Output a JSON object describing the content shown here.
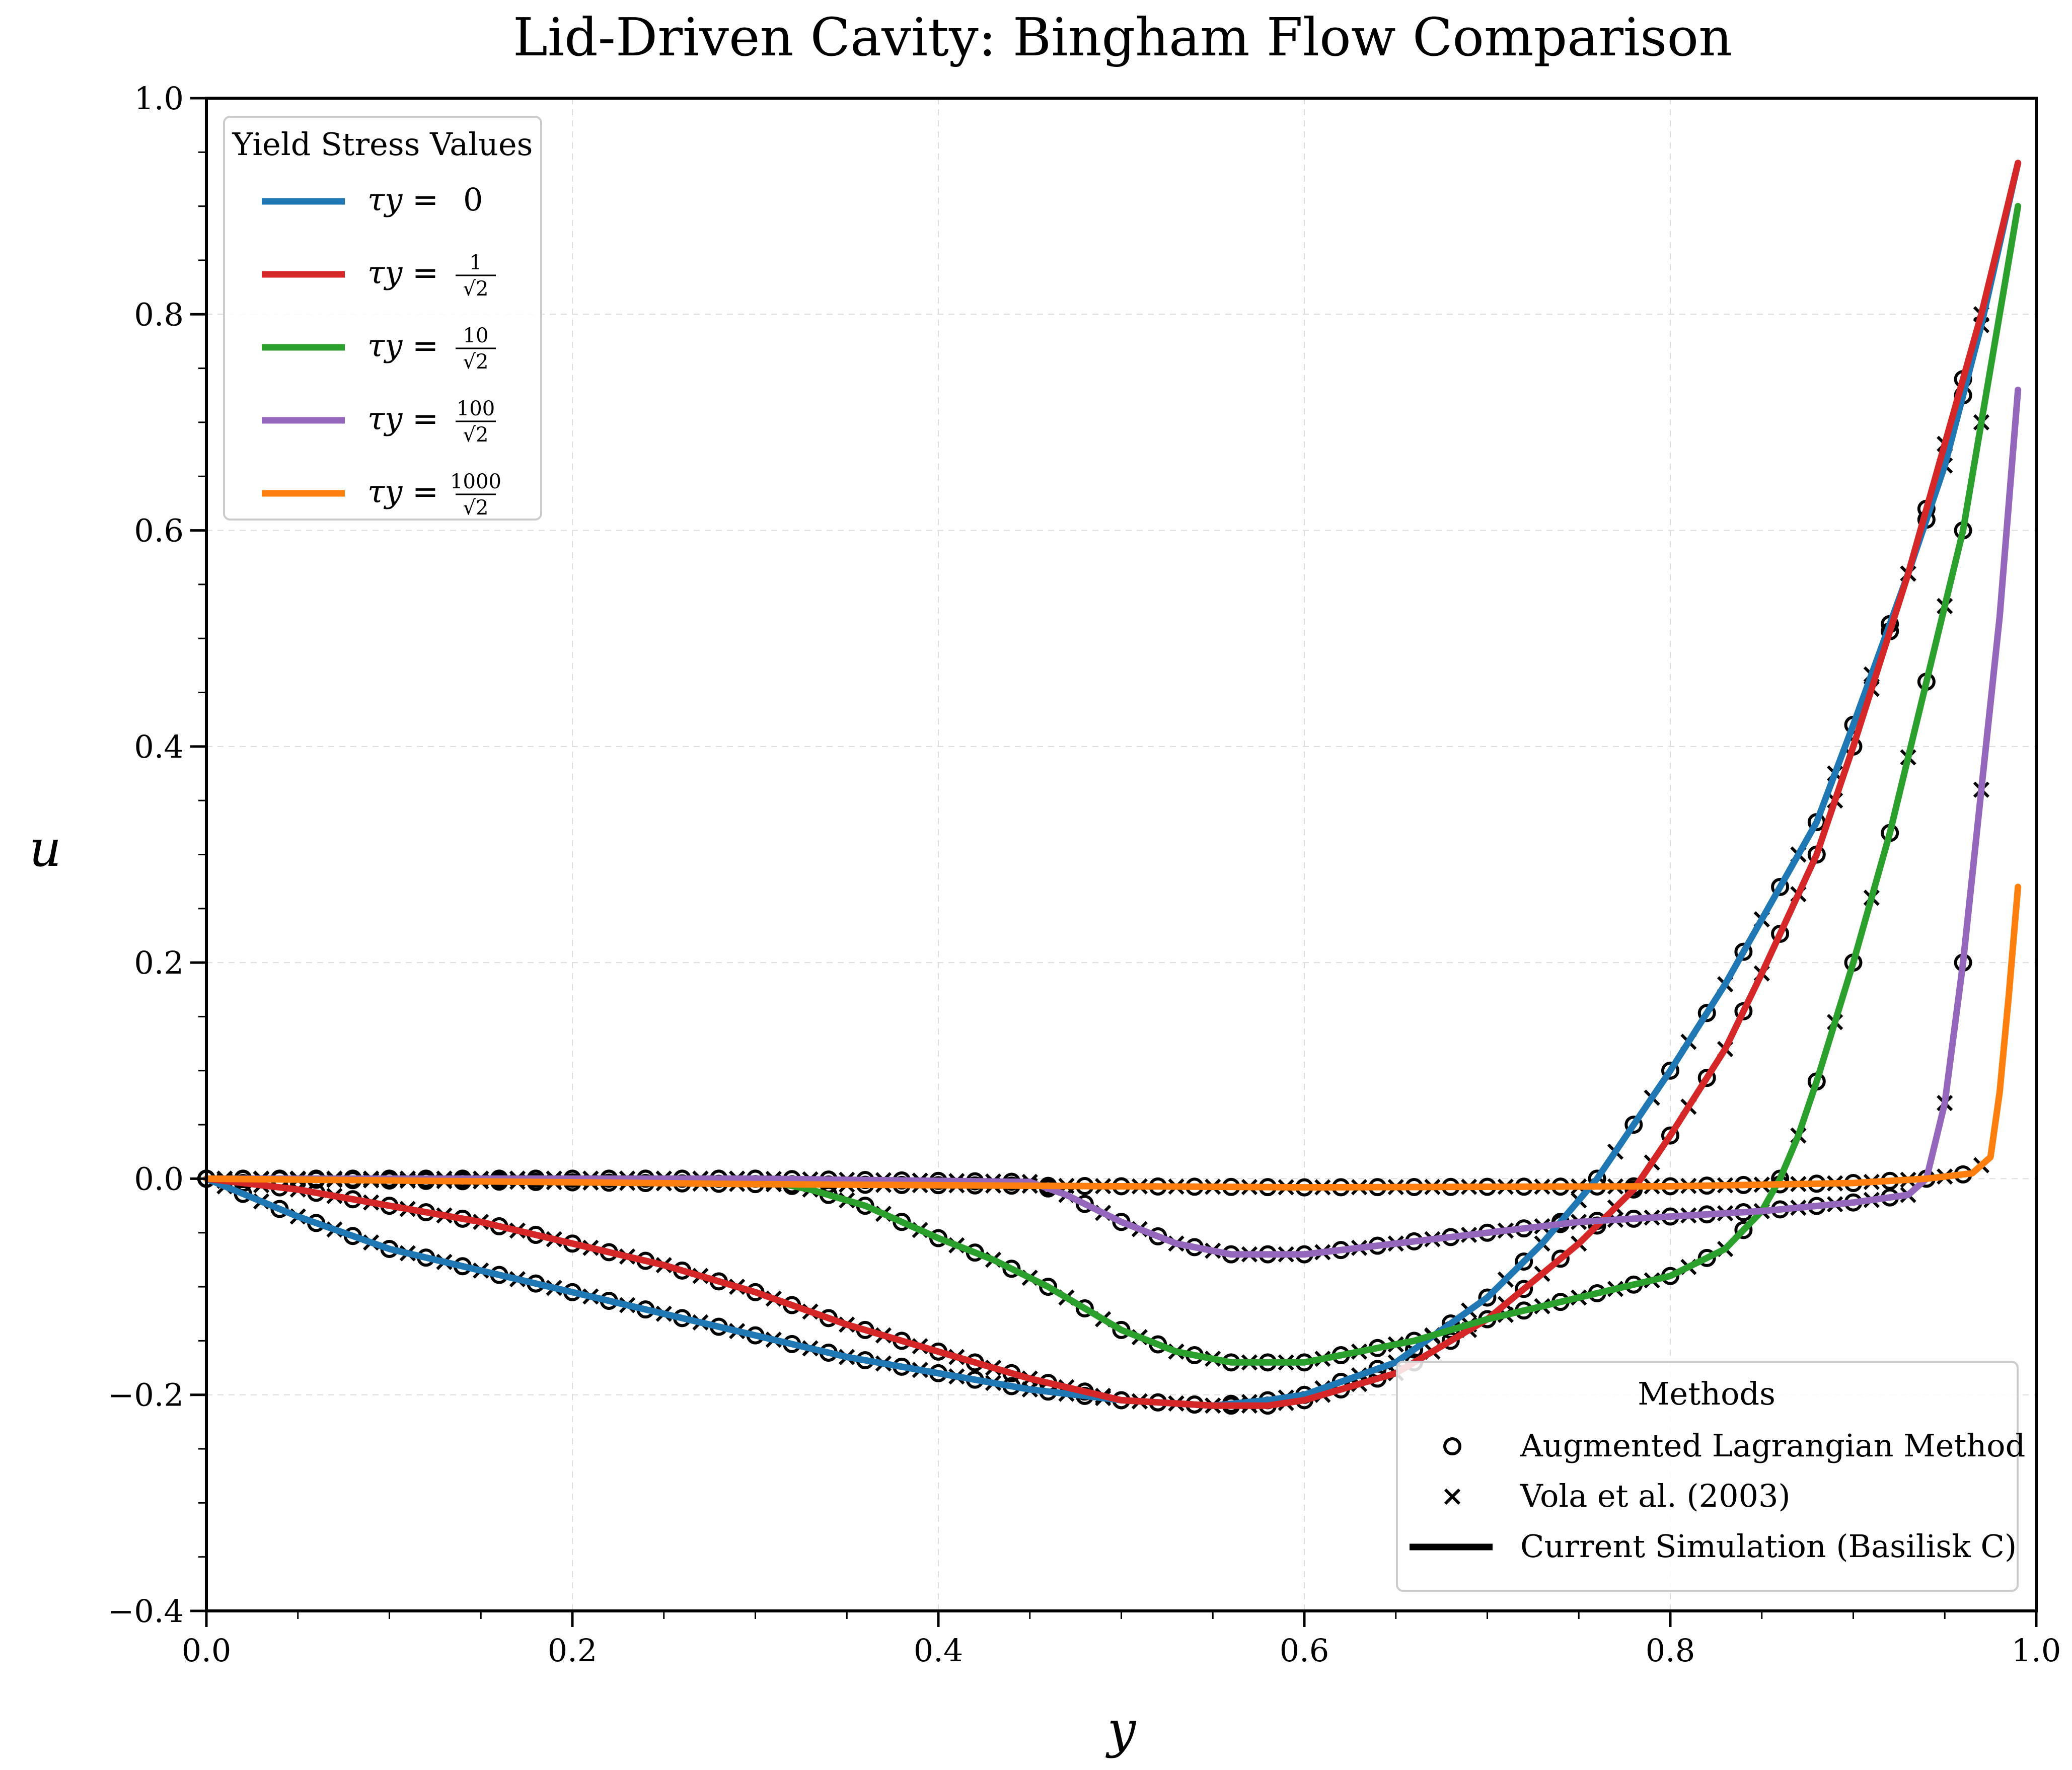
{
  "chart_data": {
    "type": "line",
    "title": "Lid-Driven Cavity: Bingham Flow Comparison",
    "xlabel": "y",
    "ylabel": "u",
    "xlim": [
      0.0,
      1.0
    ],
    "ylim": [
      -0.4,
      1.0
    ],
    "xticks": [
      "0.0",
      "0.2",
      "0.4",
      "0.6",
      "0.8",
      "1.0"
    ],
    "yticks": [
      "−0.4",
      "−0.2",
      "0.0",
      "0.2",
      "0.4",
      "0.6",
      "0.8",
      "1.0"
    ],
    "grid": true,
    "legend_series": {
      "title": "Yield Stress Values",
      "placement": "top-left",
      "entries": [
        {
          "prefix": "τy =",
          "value": "0",
          "color": "#1f77b4"
        },
        {
          "prefix": "τy =",
          "num": "1",
          "den": "√2",
          "color": "#d62728"
        },
        {
          "prefix": "τy =",
          "num": "10",
          "den": "√2",
          "color": "#2ca02c"
        },
        {
          "prefix": "τy =",
          "num": "100",
          "den": "√2",
          "color": "#9467bd"
        },
        {
          "prefix": "τy =",
          "num": "1000",
          "den": "√2",
          "color": "#ff7f0e"
        }
      ]
    },
    "legend_methods": {
      "title": "Methods",
      "placement": "bottom-right",
      "entries": [
        {
          "label": "Augmented Lagrangian Method",
          "marker": "circle"
        },
        {
          "label": "Vola et al. (2003)",
          "marker": "cross"
        },
        {
          "label": "Current Simulation (Basilisk C)",
          "marker": "line"
        }
      ]
    },
    "series": [
      {
        "color": "#1f77b4",
        "x": [
          0.0,
          0.05,
          0.1,
          0.15,
          0.2,
          0.25,
          0.3,
          0.35,
          0.4,
          0.45,
          0.5,
          0.55,
          0.58,
          0.6,
          0.65,
          0.7,
          0.73,
          0.76,
          0.78,
          0.8,
          0.83,
          0.85,
          0.88,
          0.9,
          0.93,
          0.95,
          0.97,
          0.99
        ],
        "y": [
          0.0,
          -0.035,
          -0.065,
          -0.085,
          -0.105,
          -0.125,
          -0.145,
          -0.165,
          -0.18,
          -0.195,
          -0.205,
          -0.21,
          -0.205,
          -0.2,
          -0.17,
          -0.11,
          -0.06,
          0.0,
          0.05,
          0.1,
          0.18,
          0.24,
          0.33,
          0.42,
          0.56,
          0.66,
          0.79,
          0.94
        ]
      },
      {
        "color": "#d62728",
        "x": [
          0.0,
          0.05,
          0.1,
          0.15,
          0.2,
          0.25,
          0.3,
          0.35,
          0.4,
          0.45,
          0.5,
          0.55,
          0.58,
          0.6,
          0.65,
          0.7,
          0.75,
          0.78,
          0.8,
          0.83,
          0.85,
          0.88,
          0.9,
          0.93,
          0.95,
          0.97,
          0.99
        ],
        "y": [
          0.0,
          -0.01,
          -0.025,
          -0.04,
          -0.06,
          -0.08,
          -0.105,
          -0.135,
          -0.16,
          -0.185,
          -0.205,
          -0.21,
          -0.21,
          -0.205,
          -0.18,
          -0.13,
          -0.06,
          -0.01,
          0.04,
          0.12,
          0.19,
          0.3,
          0.4,
          0.56,
          0.68,
          0.8,
          0.94
        ]
      },
      {
        "color": "#2ca02c",
        "x": [
          0.0,
          0.2,
          0.3,
          0.33,
          0.36,
          0.4,
          0.43,
          0.46,
          0.5,
          0.53,
          0.56,
          0.6,
          0.63,
          0.66,
          0.7,
          0.75,
          0.8,
          0.83,
          0.85,
          0.86,
          0.87,
          0.88,
          0.9,
          0.92,
          0.94,
          0.96,
          0.975,
          0.99
        ],
        "y": [
          0.0,
          0.0,
          0.0,
          -0.01,
          -0.025,
          -0.055,
          -0.075,
          -0.1,
          -0.14,
          -0.16,
          -0.17,
          -0.17,
          -0.16,
          -0.15,
          -0.13,
          -0.11,
          -0.09,
          -0.065,
          -0.03,
          0.0,
          0.04,
          0.09,
          0.2,
          0.32,
          0.46,
          0.6,
          0.75,
          0.9
        ]
      },
      {
        "color": "#9467bd",
        "x": [
          0.0,
          0.3,
          0.45,
          0.47,
          0.5,
          0.53,
          0.56,
          0.6,
          0.65,
          0.7,
          0.75,
          0.8,
          0.85,
          0.9,
          0.93,
          0.94,
          0.95,
          0.96,
          0.97,
          0.98,
          0.99
        ],
        "y": [
          0.0,
          0.0,
          -0.003,
          -0.015,
          -0.04,
          -0.06,
          -0.07,
          -0.07,
          -0.06,
          -0.05,
          -0.04,
          -0.035,
          -0.03,
          -0.022,
          -0.015,
          0.0,
          0.07,
          0.2,
          0.36,
          0.52,
          0.73
        ]
      },
      {
        "color": "#ff7f0e",
        "x": [
          0.0,
          0.3,
          0.6,
          0.8,
          0.9,
          0.94,
          0.965,
          0.975,
          0.98,
          0.985,
          0.99
        ],
        "y": [
          0.0,
          -0.005,
          -0.008,
          -0.007,
          -0.004,
          0.0,
          0.005,
          0.02,
          0.08,
          0.17,
          0.27
        ]
      }
    ]
  }
}
